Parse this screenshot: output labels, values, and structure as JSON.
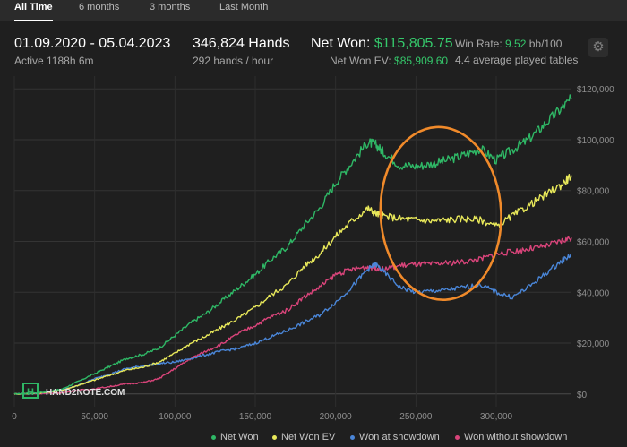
{
  "tabs": [
    {
      "label": "All Time",
      "active": true
    },
    {
      "label": "6 months",
      "active": false
    },
    {
      "label": "3 months",
      "active": false
    },
    {
      "label": "Last Month",
      "active": false
    }
  ],
  "summary": {
    "date_range": "01.09.2020 - 05.04.2023",
    "active_time": "Active 1188h 6m",
    "hands": "346,824 Hands",
    "hands_rate": "292 hands / hour",
    "net_won_label": "Net Won:",
    "net_won_value": "$115,805.75",
    "net_won_ev_label": "Net Won  EV:",
    "net_won_ev_value": "$85,909.60",
    "win_rate_label": "Win Rate:",
    "win_rate_value": "9.52",
    "win_rate_unit": "bb/100",
    "tables": "4.4 average played tables"
  },
  "watermark": "HAND2NOTE.COM",
  "icons": {
    "settings": "gear-icon",
    "logo": "hand2note-logo-icon"
  },
  "colors": {
    "background": "#1f1f1f",
    "net_won": "#2fb866",
    "net_won_ev": "#e8e85a",
    "won_at_showdown": "#4a86d8",
    "won_without_showdown": "#d9447a",
    "annotation": "#f08a2a"
  },
  "chart_data": {
    "type": "line",
    "xlim": [
      0,
      346824
    ],
    "ylim": [
      -5000,
      125000
    ],
    "x_ticks": [
      0,
      50000,
      100000,
      150000,
      200000,
      250000,
      300000
    ],
    "x_tick_labels": [
      "0",
      "50,000",
      "100,000",
      "150,000",
      "200,000",
      "250,000",
      "300,000"
    ],
    "y_ticks": [
      0,
      20000,
      40000,
      60000,
      80000,
      100000,
      120000
    ],
    "y_tick_labels": [
      "$0",
      "$20,000",
      "$40,000",
      "$60,000",
      "$80,000",
      "$100,000",
      "$120,000"
    ],
    "grid": true,
    "legend_position": "bottom-right",
    "annotation": {
      "type": "ellipse",
      "x_range": [
        228000,
        303000
      ],
      "y_range": [
        37000,
        105000
      ]
    },
    "series": [
      {
        "name": "Net Won",
        "x": [
          0,
          10000,
          20000,
          30000,
          40000,
          50000,
          60000,
          70000,
          80000,
          90000,
          100000,
          110000,
          120000,
          130000,
          140000,
          150000,
          160000,
          170000,
          180000,
          190000,
          200000,
          210000,
          220000,
          225000,
          230000,
          240000,
          250000,
          260000,
          270000,
          280000,
          290000,
          300000,
          310000,
          320000,
          330000,
          340000,
          346824
        ],
        "y": [
          0,
          300,
          800,
          2000,
          5000,
          8000,
          11000,
          14000,
          15500,
          18000,
          23000,
          28000,
          32000,
          37000,
          42000,
          47000,
          53000,
          58000,
          66000,
          73000,
          83000,
          91000,
          99000,
          98000,
          95000,
          90000,
          89500,
          90500,
          92000,
          94000,
          96500,
          92000,
          96000,
          100000,
          106000,
          112000,
          116000
        ]
      },
      {
        "name": "Net Won  EV",
        "x": [
          0,
          10000,
          20000,
          30000,
          40000,
          50000,
          60000,
          70000,
          80000,
          90000,
          100000,
          110000,
          120000,
          130000,
          140000,
          150000,
          160000,
          170000,
          180000,
          190000,
          200000,
          210000,
          220000,
          225000,
          230000,
          240000,
          250000,
          260000,
          270000,
          280000,
          290000,
          300000,
          310000,
          320000,
          330000,
          340000,
          346824
        ],
        "y": [
          0,
          200,
          600,
          1500,
          3500,
          5500,
          7500,
          9500,
          10500,
          12500,
          16000,
          20000,
          23000,
          26500,
          30000,
          34000,
          39000,
          43000,
          50000,
          55000,
          62000,
          68000,
          73000,
          71000,
          70000,
          69000,
          68500,
          68000,
          68500,
          69000,
          68500,
          66000,
          70000,
          74000,
          78000,
          82000,
          86000
        ]
      },
      {
        "name": "Won at showdown",
        "x": [
          0,
          10000,
          20000,
          30000,
          40000,
          50000,
          60000,
          70000,
          80000,
          90000,
          100000,
          110000,
          120000,
          130000,
          140000,
          150000,
          160000,
          170000,
          180000,
          190000,
          200000,
          210000,
          220000,
          225000,
          230000,
          240000,
          250000,
          260000,
          270000,
          280000,
          290000,
          300000,
          310000,
          320000,
          330000,
          340000,
          346824
        ],
        "y": [
          0,
          200,
          600,
          1500,
          3500,
          6000,
          8000,
          10000,
          11000,
          12000,
          12500,
          14000,
          15500,
          17000,
          18000,
          20000,
          22500,
          25000,
          28000,
          31000,
          36000,
          42000,
          49000,
          51000,
          48000,
          42000,
          40000,
          40500,
          41000,
          42000,
          43000,
          40000,
          38000,
          42000,
          47000,
          52000,
          55000
        ]
      },
      {
        "name": "Won without showdown",
        "x": [
          0,
          10000,
          20000,
          30000,
          40000,
          50000,
          60000,
          70000,
          80000,
          90000,
          100000,
          110000,
          120000,
          130000,
          140000,
          150000,
          160000,
          170000,
          180000,
          190000,
          200000,
          210000,
          220000,
          225000,
          230000,
          240000,
          250000,
          260000,
          270000,
          280000,
          290000,
          300000,
          310000,
          320000,
          330000,
          340000,
          346824
        ],
        "y": [
          0,
          100,
          200,
          500,
          1500,
          2000,
          3000,
          4000,
          4500,
          6000,
          10000,
          14000,
          17000,
          20000,
          24000,
          27000,
          30500,
          33000,
          38000,
          42000,
          47000,
          49000,
          50000,
          49500,
          49000,
          50500,
          51000,
          51000,
          51500,
          52000,
          53000,
          55000,
          56000,
          57000,
          58000,
          60000,
          61500
        ]
      }
    ]
  }
}
